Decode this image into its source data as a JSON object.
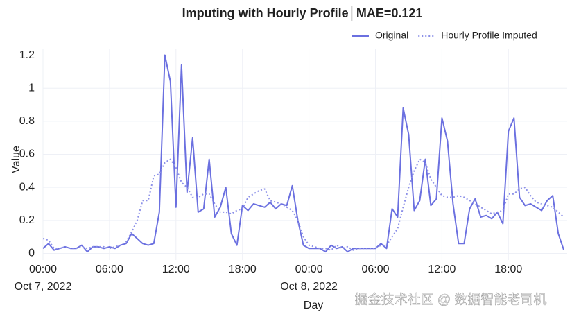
{
  "chart_data": {
    "type": "line",
    "title": "Imputing with Hourly Profile│MAE=0.121",
    "x_label": "Day",
    "y_label": "Value",
    "annotation": "掘金技术社区 @ 数据智能老司机",
    "x": [
      0,
      0.5,
      1,
      1.5,
      2,
      2.5,
      3,
      3.5,
      4,
      4.5,
      5,
      5.5,
      6,
      6.5,
      7,
      7.5,
      8,
      8.5,
      9,
      9.5,
      10,
      10.5,
      11,
      11.5,
      12,
      12.5,
      13,
      13.5,
      14,
      14.5,
      15,
      15.5,
      16,
      16.5,
      17,
      17.5,
      18,
      18.5,
      19,
      19.5,
      20,
      20.5,
      21,
      21.5,
      22,
      22.5,
      23,
      23.5,
      24,
      24.5,
      25,
      25.5,
      26,
      26.5,
      27,
      27.5,
      28,
      28.5,
      29,
      29.5,
      30,
      30.5,
      31,
      31.5,
      32,
      32.5,
      33,
      33.5,
      34,
      34.5,
      35,
      35.5,
      36,
      36.5,
      37,
      37.5,
      38,
      38.5,
      39,
      39.5,
      40,
      40.5,
      41,
      41.5,
      42,
      42.5,
      43,
      43.5,
      44,
      44.5,
      45,
      45.5,
      46,
      46.5,
      47
    ],
    "series": [
      {
        "name": "Original",
        "color": "#6b70e0",
        "style": "solid",
        "values": [
          0.03,
          0.06,
          0.02,
          0.03,
          0.04,
          0.03,
          0.03,
          0.05,
          0.01,
          0.04,
          0.04,
          0.03,
          0.04,
          0.03,
          0.05,
          0.06,
          0.12,
          0.09,
          0.06,
          0.05,
          0.06,
          0.25,
          1.2,
          1.04,
          0.28,
          1.14,
          0.37,
          0.7,
          0.25,
          0.27,
          0.57,
          0.22,
          0.28,
          0.4,
          0.12,
          0.05,
          0.29,
          0.26,
          0.3,
          0.29,
          0.28,
          0.31,
          0.27,
          0.3,
          0.29,
          0.41,
          0.2,
          0.05,
          0.03,
          0.03,
          0.03,
          0.01,
          0.05,
          0.03,
          0.04,
          0.01,
          0.03,
          0.03,
          0.03,
          0.03,
          0.03,
          0.06,
          0.03,
          0.27,
          0.22,
          0.88,
          0.72,
          0.26,
          0.32,
          0.57,
          0.29,
          0.33,
          0.82,
          0.68,
          0.3,
          0.06,
          0.06,
          0.27,
          0.33,
          0.22,
          0.23,
          0.21,
          0.25,
          0.18,
          0.74,
          0.82,
          0.34,
          0.29,
          0.3,
          0.28,
          0.26,
          0.32,
          0.35,
          0.12,
          0.02
        ]
      },
      {
        "name": "Hourly Profile Imputed",
        "color": "#8c90e8",
        "style": "dotted",
        "values": [
          0.09,
          0.08,
          0.03,
          0.03,
          0.04,
          0.03,
          0.03,
          0.04,
          0.03,
          0.04,
          0.04,
          0.04,
          0.03,
          0.04,
          0.05,
          0.07,
          0.13,
          0.2,
          0.32,
          0.32,
          0.47,
          0.48,
          0.55,
          0.57,
          0.52,
          0.43,
          0.4,
          0.34,
          0.34,
          0.36,
          0.36,
          0.3,
          0.25,
          0.25,
          0.24,
          0.26,
          0.27,
          0.34,
          0.36,
          0.38,
          0.39,
          0.32,
          0.31,
          0.3,
          0.28,
          0.26,
          0.2,
          0.1,
          0.05,
          0.04,
          0.03,
          0.03,
          0.02,
          0.05,
          0.03,
          0.04,
          0.02,
          0.03,
          0.03,
          0.03,
          0.03,
          0.05,
          0.05,
          0.1,
          0.15,
          0.28,
          0.4,
          0.5,
          0.57,
          0.55,
          0.45,
          0.4,
          0.35,
          0.34,
          0.34,
          0.35,
          0.34,
          0.32,
          0.3,
          0.28,
          0.26,
          0.24,
          0.25,
          0.26,
          0.36,
          0.36,
          0.39,
          0.4,
          0.35,
          0.31,
          0.3,
          0.29,
          0.28,
          0.25,
          0.22
        ]
      }
    ],
    "xlim": [
      0,
      47.3
    ],
    "xticks": [
      {
        "value": 0,
        "label": "00:00"
      },
      {
        "value": 6,
        "label": "06:00"
      },
      {
        "value": 12,
        "label": "12:00"
      },
      {
        "value": 18,
        "label": "18:00"
      },
      {
        "value": 24,
        "label": "00:00"
      },
      {
        "value": 30,
        "label": "06:00"
      },
      {
        "value": 36,
        "label": "12:00"
      },
      {
        "value": 42,
        "label": "18:00"
      }
    ],
    "x_date_labels": [
      {
        "value": 0,
        "label": "Oct 7, 2022"
      },
      {
        "value": 24,
        "label": "Oct 8, 2022"
      }
    ],
    "ylim": [
      -0.04,
      1.24
    ],
    "yticks": [
      0,
      0.2,
      0.4,
      0.6,
      0.8,
      1,
      1.2
    ],
    "grid": true,
    "legend": "top-right"
  }
}
